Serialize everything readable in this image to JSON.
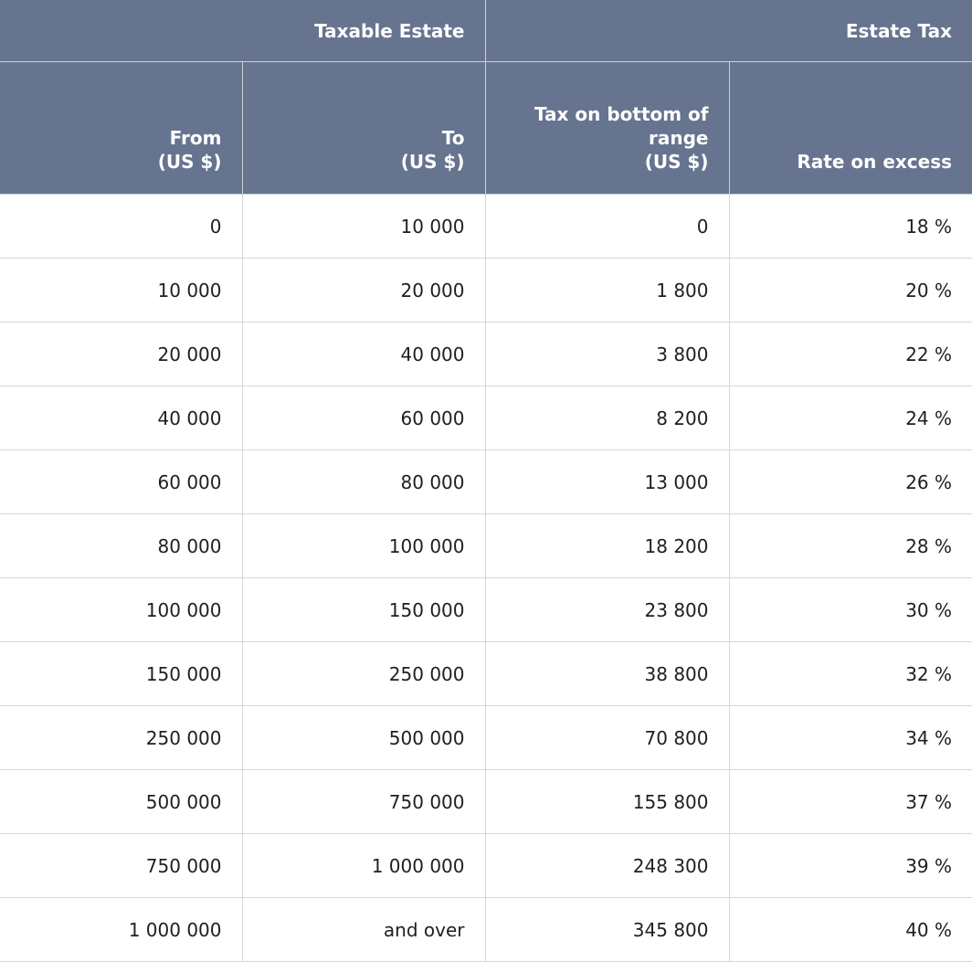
{
  "header": {
    "groups": {
      "taxable_estate": "Taxable Estate",
      "estate_tax": "Estate Tax"
    },
    "columns": {
      "from": "From\n(US $)",
      "to": "To\n(US $)",
      "tax_on_bottom": "Tax on bottom of\nrange\n(US $)",
      "rate_on_excess": "Rate on excess"
    }
  },
  "rows": [
    {
      "from": "0",
      "to": "10 000",
      "tax": "0",
      "rate": "18 %"
    },
    {
      "from": "10 000",
      "to": "20 000",
      "tax": "1 800",
      "rate": "20 %"
    },
    {
      "from": "20 000",
      "to": "40 000",
      "tax": "3 800",
      "rate": "22 %"
    },
    {
      "from": "40 000",
      "to": "60 000",
      "tax": "8 200",
      "rate": "24 %"
    },
    {
      "from": "60 000",
      "to": "80 000",
      "tax": "13 000",
      "rate": "26 %"
    },
    {
      "from": "80 000",
      "to": "100 000",
      "tax": "18 200",
      "rate": "28 %"
    },
    {
      "from": "100 000",
      "to": "150 000",
      "tax": "23 800",
      "rate": "30 %"
    },
    {
      "from": "150 000",
      "to": "250 000",
      "tax": "38 800",
      "rate": "32 %"
    },
    {
      "from": "250 000",
      "to": "500 000",
      "tax": "70 800",
      "rate": "34 %"
    },
    {
      "from": "500 000",
      "to": "750 000",
      "tax": "155 800",
      "rate": "37 %"
    },
    {
      "from": "750 000",
      "to": "1 000 000",
      "tax": "248 300",
      "rate": "39 %"
    },
    {
      "from": "1 000 000",
      "to": "and over",
      "tax": "345 800",
      "rate": "40 %"
    }
  ],
  "colors": {
    "header_bg": "#66748f",
    "header_text": "#ffffff",
    "grid_line": "#d6d6d6"
  }
}
